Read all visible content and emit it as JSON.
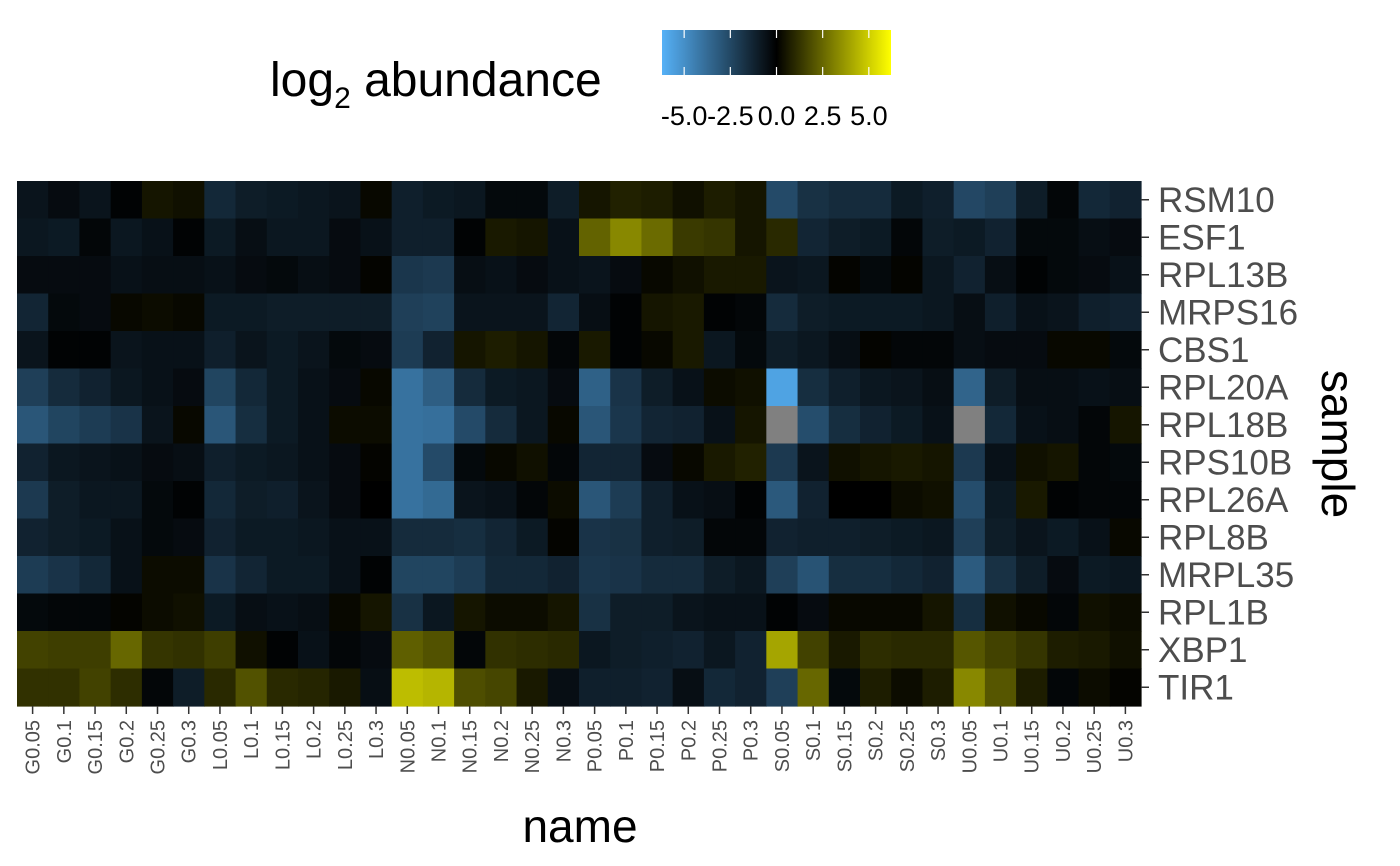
{
  "chart_data": {
    "type": "heatmap",
    "title": "",
    "xlabel": "name",
    "ylabel": "sample",
    "legend": {
      "title_base": "log",
      "title_sub": "2",
      "title_rest": " abundance",
      "placement": "top",
      "ticks": [
        "-5.0",
        "-2.5",
        "0.0",
        "2.5",
        "5.0"
      ],
      "tick_values": [
        -5,
        -2.5,
        0,
        2.5,
        5
      ],
      "limits": [
        -6.2,
        6.2
      ],
      "colors": {
        "low": "#56b1f7",
        "mid": "#000000",
        "high": "#ffff00"
      }
    },
    "na_color": "#808080",
    "x_categories": [
      "G0.05",
      "G0.1",
      "G0.15",
      "G0.2",
      "G0.25",
      "G0.3",
      "L0.05",
      "L0.1",
      "L0.15",
      "L0.2",
      "L0.25",
      "L0.3",
      "N0.05",
      "N0.1",
      "N0.15",
      "N0.2",
      "N0.25",
      "N0.3",
      "P0.05",
      "P0.1",
      "P0.15",
      "P0.2",
      "P0.25",
      "P0.3",
      "S0.05",
      "S0.1",
      "S0.15",
      "S0.2",
      "S0.25",
      "S0.3",
      "U0.05",
      "U0.1",
      "U0.15",
      "U0.2",
      "U0.25",
      "U0.3"
    ],
    "y_categories": [
      "RSM10",
      "ESF1",
      "RPL13B",
      "MRPS16",
      "CBS1",
      "RPL20A",
      "RPL18B",
      "RPS10B",
      "RPL26A",
      "RPL8B",
      "MRPL35",
      "RPL1B",
      "XBP1",
      "TIR1"
    ],
    "values": [
      [
        -0.7,
        -0.4,
        -0.7,
        -0.1,
        0.5,
        0.4,
        -1.4,
        -1.0,
        -0.9,
        -0.8,
        -0.7,
        0.2,
        -1.1,
        -0.9,
        -0.8,
        -0.3,
        -0.3,
        -1.0,
        0.5,
        0.8,
        0.7,
        0.4,
        0.7,
        0.5,
        -2.6,
        -1.7,
        -1.5,
        -1.5,
        -0.9,
        -1.1,
        -2.5,
        -2.2,
        -1.0,
        -0.2,
        -1.4,
        -1.2
      ],
      [
        -0.8,
        -0.9,
        -0.2,
        -0.8,
        -0.6,
        -0.1,
        -0.9,
        -0.5,
        -0.8,
        -0.8,
        -0.4,
        -0.6,
        -1.1,
        -1.1,
        -0.1,
        0.6,
        0.5,
        -0.6,
        2.4,
        3.3,
        2.6,
        1.4,
        1.3,
        0.5,
        1.0,
        -1.3,
        -1.0,
        -0.9,
        -0.2,
        -1.0,
        -0.9,
        -1.2,
        -0.3,
        -0.3,
        -0.5,
        -0.4
      ],
      [
        -0.4,
        -0.4,
        -0.4,
        -0.6,
        -0.5,
        -0.5,
        -0.6,
        -0.4,
        -0.3,
        -0.5,
        -0.4,
        0.1,
        -1.9,
        -2.0,
        -0.5,
        -0.6,
        -0.4,
        -0.6,
        -0.7,
        -0.4,
        0.2,
        0.4,
        0.6,
        0.6,
        -0.7,
        -0.8,
        0.1,
        -0.3,
        0.1,
        -0.8,
        -1.2,
        -0.5,
        -0.1,
        -0.3,
        -0.4,
        -0.6
      ],
      [
        -1.3,
        -0.3,
        -0.4,
        0.2,
        0.3,
        0.2,
        -0.9,
        -0.9,
        -1.0,
        -1.0,
        -1.0,
        -1.0,
        -2.2,
        -2.3,
        -0.7,
        -0.7,
        -0.7,
        -1.3,
        -0.5,
        -0.1,
        0.5,
        0.6,
        -0.1,
        -0.2,
        -1.5,
        -1.0,
        -0.9,
        -0.9,
        -0.9,
        -0.8,
        -0.5,
        -1.1,
        -0.6,
        -0.7,
        -1.1,
        -1.2
      ],
      [
        -0.7,
        -0.1,
        -0.1,
        -0.7,
        -0.6,
        -0.6,
        -1.1,
        -0.7,
        -0.9,
        -0.7,
        -0.3,
        -0.4,
        -2.1,
        -1.2,
        0.5,
        0.7,
        0.5,
        -0.2,
        0.6,
        -0.1,
        0.2,
        0.6,
        -0.8,
        -0.3,
        -1.0,
        -0.8,
        -0.5,
        0.1,
        -0.2,
        -0.2,
        -0.5,
        -0.4,
        -0.4,
        0.2,
        0.2,
        -0.3
      ],
      [
        -2.2,
        -1.5,
        -1.2,
        -0.8,
        -0.6,
        -0.4,
        -2.4,
        -1.4,
        -0.9,
        -0.6,
        -0.4,
        0.2,
        -4.0,
        -3.3,
        -1.5,
        -0.9,
        -0.8,
        -0.4,
        -3.4,
        -1.8,
        -1.0,
        -0.6,
        0.3,
        0.4,
        -5.7,
        -1.6,
        -1.1,
        -0.8,
        -0.7,
        -0.5,
        -3.5,
        -1.0,
        -0.5,
        -0.5,
        -0.6,
        -0.5
      ],
      [
        -3.0,
        -2.4,
        -2.1,
        -1.8,
        -0.7,
        0.2,
        -3.0,
        -1.6,
        -0.9,
        -0.6,
        0.3,
        0.3,
        -4.0,
        -3.9,
        -2.6,
        -1.5,
        -0.8,
        0.2,
        -3.0,
        -1.9,
        -1.3,
        -1.2,
        -0.6,
        0.5,
        null,
        -2.7,
        -1.6,
        -1.2,
        -0.9,
        -0.6,
        null,
        -1.4,
        -0.6,
        -0.5,
        -0.2,
        0.5
      ],
      [
        -1.2,
        -0.8,
        -0.7,
        -0.6,
        -0.4,
        -0.5,
        -1.1,
        -0.9,
        -0.8,
        -0.6,
        -0.4,
        0.1,
        -4.0,
        -2.6,
        -0.3,
        0.2,
        0.4,
        -0.2,
        -1.3,
        -1.3,
        -0.4,
        0.2,
        0.6,
        0.8,
        -2.0,
        -0.7,
        0.4,
        0.5,
        0.6,
        0.5,
        -2.0,
        -0.6,
        0.4,
        0.5,
        -0.2,
        -0.3
      ],
      [
        -2.0,
        -1.0,
        -0.8,
        -0.8,
        -0.3,
        -0.1,
        -1.4,
        -1.0,
        -1.1,
        -0.7,
        -0.4,
        0.0,
        -4.0,
        -3.7,
        -0.7,
        -0.6,
        -0.2,
        0.3,
        -3.0,
        -2.1,
        -1.1,
        -0.6,
        -0.5,
        -0.1,
        -3.1,
        -1.2,
        0.0,
        0.0,
        0.3,
        0.4,
        -2.7,
        -0.9,
        0.6,
        -0.1,
        -0.2,
        -0.2
      ],
      [
        -1.2,
        -1.0,
        -0.9,
        -0.6,
        -0.3,
        -0.4,
        -1.2,
        -0.9,
        -0.9,
        -0.8,
        -0.6,
        -0.6,
        -1.5,
        -1.5,
        -1.6,
        -1.3,
        -0.9,
        0.1,
        -1.8,
        -1.7,
        -1.1,
        -1.0,
        -0.2,
        -0.2,
        -1.2,
        -1.1,
        -1.1,
        -1.0,
        -0.9,
        -0.8,
        -2.2,
        -1.0,
        -0.7,
        -0.9,
        -0.6,
        0.2
      ],
      [
        -2.1,
        -1.8,
        -1.4,
        -0.6,
        0.3,
        0.3,
        -1.8,
        -1.3,
        -0.9,
        -0.9,
        -0.6,
        -0.1,
        -2.4,
        -2.4,
        -2.1,
        -1.4,
        -1.4,
        -1.2,
        -1.9,
        -1.8,
        -1.5,
        -1.5,
        -1.0,
        -0.8,
        -2.2,
        -2.9,
        -1.6,
        -1.6,
        -1.4,
        -1.2,
        -3.2,
        -1.7,
        -1.0,
        -0.4,
        -0.9,
        -0.8
      ],
      [
        -0.3,
        -0.2,
        -0.2,
        0.1,
        0.3,
        0.4,
        -0.9,
        -0.5,
        -0.6,
        -0.5,
        0.2,
        0.5,
        -1.7,
        -0.8,
        0.5,
        0.3,
        0.3,
        0.5,
        -1.7,
        -1.0,
        -1.0,
        -0.7,
        -0.6,
        -0.6,
        -0.1,
        -0.4,
        0.2,
        0.2,
        0.2,
        0.5,
        -1.6,
        0.4,
        0.2,
        -0.2,
        0.4,
        0.3
      ],
      [
        1.6,
        1.5,
        1.5,
        2.5,
        1.3,
        1.2,
        1.5,
        0.4,
        -0.1,
        -0.6,
        -0.2,
        -0.4,
        2.3,
        2.0,
        -0.2,
        1.2,
        1.1,
        1.0,
        -0.8,
        -1.0,
        -1.1,
        -1.2,
        -0.8,
        -1.2,
        4.0,
        1.6,
        0.6,
        1.1,
        1.0,
        1.0,
        2.1,
        1.6,
        1.3,
        0.7,
        0.6,
        0.4
      ],
      [
        1.2,
        1.2,
        1.6,
        1.1,
        -0.2,
        -1.0,
        1.0,
        2.0,
        1.0,
        0.9,
        0.6,
        -0.5,
        4.6,
        4.4,
        1.9,
        1.7,
        0.6,
        -0.5,
        -1.1,
        -1.1,
        -1.2,
        -0.5,
        -1.4,
        -1.2,
        -2.2,
        2.5,
        -0.3,
        0.7,
        0.3,
        0.7,
        3.3,
        2.1,
        0.7,
        -0.2,
        0.3,
        0.1
      ]
    ]
  }
}
